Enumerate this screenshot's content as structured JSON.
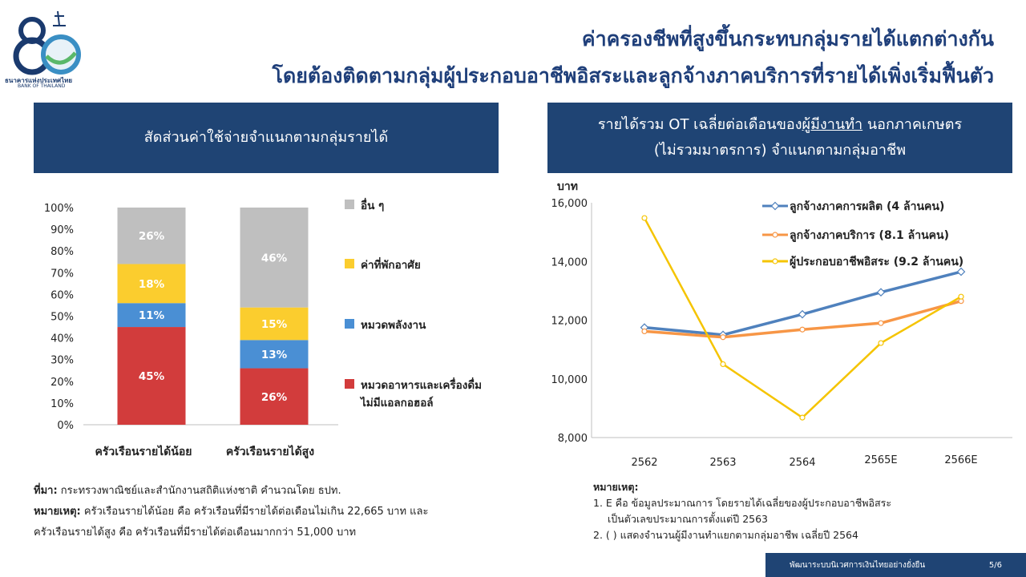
{
  "brand": {
    "logo_number": "80",
    "name_th": "ธนาคารแห่งประเทศไทย",
    "name_en": "BANK OF THAILAND"
  },
  "title": {
    "line1": "ค่าครองชีพที่สูงขึ้นกระทบกลุ่มรายได้แตกต่างกัน",
    "line2": "โดยต้องติดตามกลุ่มผู้ประกอบอาชีพอิสระและลูกจ้างภาคบริการที่รายได้เพิ่งเริ่มฟื้นตัว"
  },
  "left_panel": {
    "header": "สัดส่วนค่าใช้จ่ายจำแนกตามกลุ่มรายได้"
  },
  "right_panel": {
    "header_line1": "รายได้รวม OT เฉลี่ยต่อเดือนของ",
    "header_underlined": "ผู้มีงานทำ",
    "header_line1_end": " นอกภาคเกษตร",
    "header_line2": "(ไม่รวมมาตรการ) จำแนกตามกลุ่มอาชีพ"
  },
  "chart_data": [
    {
      "type": "bar",
      "stacked": true,
      "categories": [
        "ครัวเรือนรายได้น้อย",
        "ครัวเรือนรายได้สูง"
      ],
      "series": [
        {
          "name": "หมวดอาหารและเครื่องดื่มไม่มีแอลกอฮอล์",
          "values": [
            45,
            26
          ],
          "labels": [
            "45%",
            "26%"
          ],
          "color": "#d23c3c"
        },
        {
          "name": "หมวดพลังงาน",
          "values": [
            11,
            13
          ],
          "labels": [
            "11%",
            "13%"
          ],
          "color": "#4a8fd4"
        },
        {
          "name": "ค่าที่พักอาศัย",
          "values": [
            18,
            15
          ],
          "labels": [
            "18%",
            "15%"
          ],
          "color": "#fbcd2e"
        },
        {
          "name": "อื่น ๆ",
          "values": [
            26,
            46
          ],
          "labels": [
            "26%",
            "46%"
          ],
          "color": "#bfbfbf"
        }
      ],
      "legend_items": [
        {
          "label": "อื่น ๆ",
          "color": "#bfbfbf"
        },
        {
          "label": "ค่าที่พักอาศัย",
          "color": "#fbcd2e"
        },
        {
          "label": "หมวดพลังงาน",
          "color": "#4a8fd4"
        },
        {
          "label": "หมวดอาหารและเครื่องดื่ม",
          "label2": "ไม่มีแอลกอฮอล์",
          "color": "#d23c3c"
        }
      ],
      "yticks": [
        "0%",
        "10%",
        "20%",
        "30%",
        "40%",
        "50%",
        "60%",
        "70%",
        "80%",
        "90%",
        "100%"
      ],
      "ylim": [
        0,
        100
      ],
      "legend_position": "right",
      "grid": false
    },
    {
      "type": "line",
      "ylabel": "บาท",
      "x": [
        "2562",
        "2563",
        "2564",
        "2565E",
        "2566E"
      ],
      "ylim": [
        8000,
        16000
      ],
      "yticks": [
        "8,000",
        "10,000",
        "12,000",
        "14,000",
        "16,000"
      ],
      "series": [
        {
          "name": "ลูกจ้างภาคการผลิต (4 ล้านคน)",
          "values": [
            11750,
            11500,
            12200,
            12950,
            13650
          ],
          "color": "#4f81bd",
          "marker": "diamond"
        },
        {
          "name": "ลูกจ้างภาคบริการ (8.1 ล้านคน)",
          "values": [
            11620,
            11420,
            11680,
            11900,
            12650
          ],
          "color": "#f79646",
          "marker": "circle"
        },
        {
          "name": "ผู้ประกอบอาชีพอิสระ (9.2 ล้านคน)",
          "values": [
            15480,
            10500,
            8680,
            11220,
            12800
          ],
          "color": "#f5c400",
          "marker": "circle"
        }
      ],
      "legend_position": "top-right",
      "grid": false
    }
  ],
  "notes_left": {
    "source_label": "ที่มา:",
    "source_text": " กระทรวงพาณิชย์และสำนักงานสถิติแห่งชาติ คำนวณโดย ธปท.",
    "note_label": "หมายเหตุ:",
    "note_text1": "  ครัวเรือนรายได้น้อย คือ ครัวเรือนที่มีรายได้ต่อเดือนไม่เกิน 22,665 บาท และ",
    "note_text2": "ครัวเรือนรายได้สูง คือ ครัวเรือนที่มีรายได้ต่อเดือนมากกว่า 51,000 บาท"
  },
  "notes_right": {
    "label": "หมายเหตุ:",
    "n1": "1. E คือ ข้อมูลประมาณการ โดยรายได้เฉลี่ยของผู้ประกอบอาชีพอิสระ",
    "n1b": "เป็นตัวเลขประมาณการตั้งแต่ปี 2563",
    "n2": "2. ( ) แสดงจำนวนผู้มีงานทำแยกตามกลุ่มอาชีพ เฉลี่ยปี 2564"
  },
  "footer": {
    "text": "พัฒนาระบบนิเวศการเงินไทยอย่างยั่งยืน",
    "page": "5/6"
  }
}
